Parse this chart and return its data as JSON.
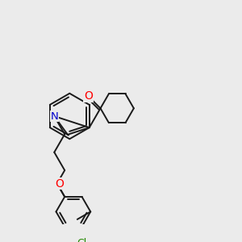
{
  "background_color": "#ebebeb",
  "bond_color": "#1a1a1a",
  "bond_width": 1.4,
  "atom_colors": {
    "O": "#ff0000",
    "N": "#0000cc",
    "Cl": "#228800",
    "C": "#1a1a1a"
  }
}
